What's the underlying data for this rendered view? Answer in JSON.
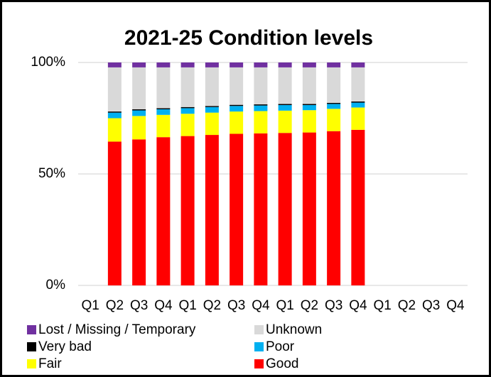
{
  "chart_data": {
    "type": "stacked_bar",
    "title": "2021-25 Condition levels",
    "categories": [
      "Q1",
      "Q2",
      "Q3",
      "Q4",
      "Q1",
      "Q2",
      "Q3",
      "Q4",
      "Q1",
      "Q2",
      "Q3",
      "Q4",
      "Q1",
      "Q2",
      "Q3",
      "Q4"
    ],
    "series": [
      {
        "name": "Lost / Missing / Temporary",
        "color": "#7030a0",
        "values": [
          null,
          2.2,
          2.2,
          2.2,
          2.2,
          2.2,
          2.2,
          2.2,
          2.2,
          2.2,
          2.2,
          2.2,
          null,
          null,
          null,
          null
        ]
      },
      {
        "name": "Unknown",
        "color": "#d9d9d9",
        "values": [
          null,
          19.8,
          18.8,
          18.3,
          17.8,
          17.3,
          16.8,
          16.6,
          16.4,
          16.4,
          15.9,
          15.3,
          null,
          null,
          null,
          null
        ]
      },
      {
        "name": "Very bad",
        "color": "#000000",
        "values": [
          null,
          0.5,
          0.5,
          0.5,
          0.5,
          0.5,
          0.5,
          0.5,
          0.5,
          0.5,
          0.5,
          0.5,
          null,
          null,
          null,
          null
        ]
      },
      {
        "name": "Poor",
        "color": "#00b0f0",
        "values": [
          null,
          2.5,
          2.5,
          2.5,
          2.5,
          2.5,
          2.5,
          2.5,
          2.5,
          2.3,
          2.2,
          2.2,
          null,
          null,
          null,
          null
        ]
      },
      {
        "name": "Fair",
        "color": "#ffff00",
        "values": [
          null,
          10.5,
          10.5,
          10,
          10,
          10,
          10,
          10,
          10,
          10,
          10,
          10,
          null,
          null,
          null,
          null
        ]
      },
      {
        "name": "Good",
        "color": "#ff0000",
        "values": [
          null,
          64.5,
          65.5,
          66.5,
          67,
          67.5,
          68,
          68.2,
          68.4,
          68.6,
          69.2,
          69.8,
          null,
          null,
          null,
          null
        ]
      }
    ],
    "ylim": [
      0,
      100
    ],
    "yticks": [
      {
        "value": 0,
        "label": "0%"
      },
      {
        "value": 50,
        "label": "50%"
      },
      {
        "value": 100,
        "label": "100%"
      }
    ],
    "grid": true
  }
}
